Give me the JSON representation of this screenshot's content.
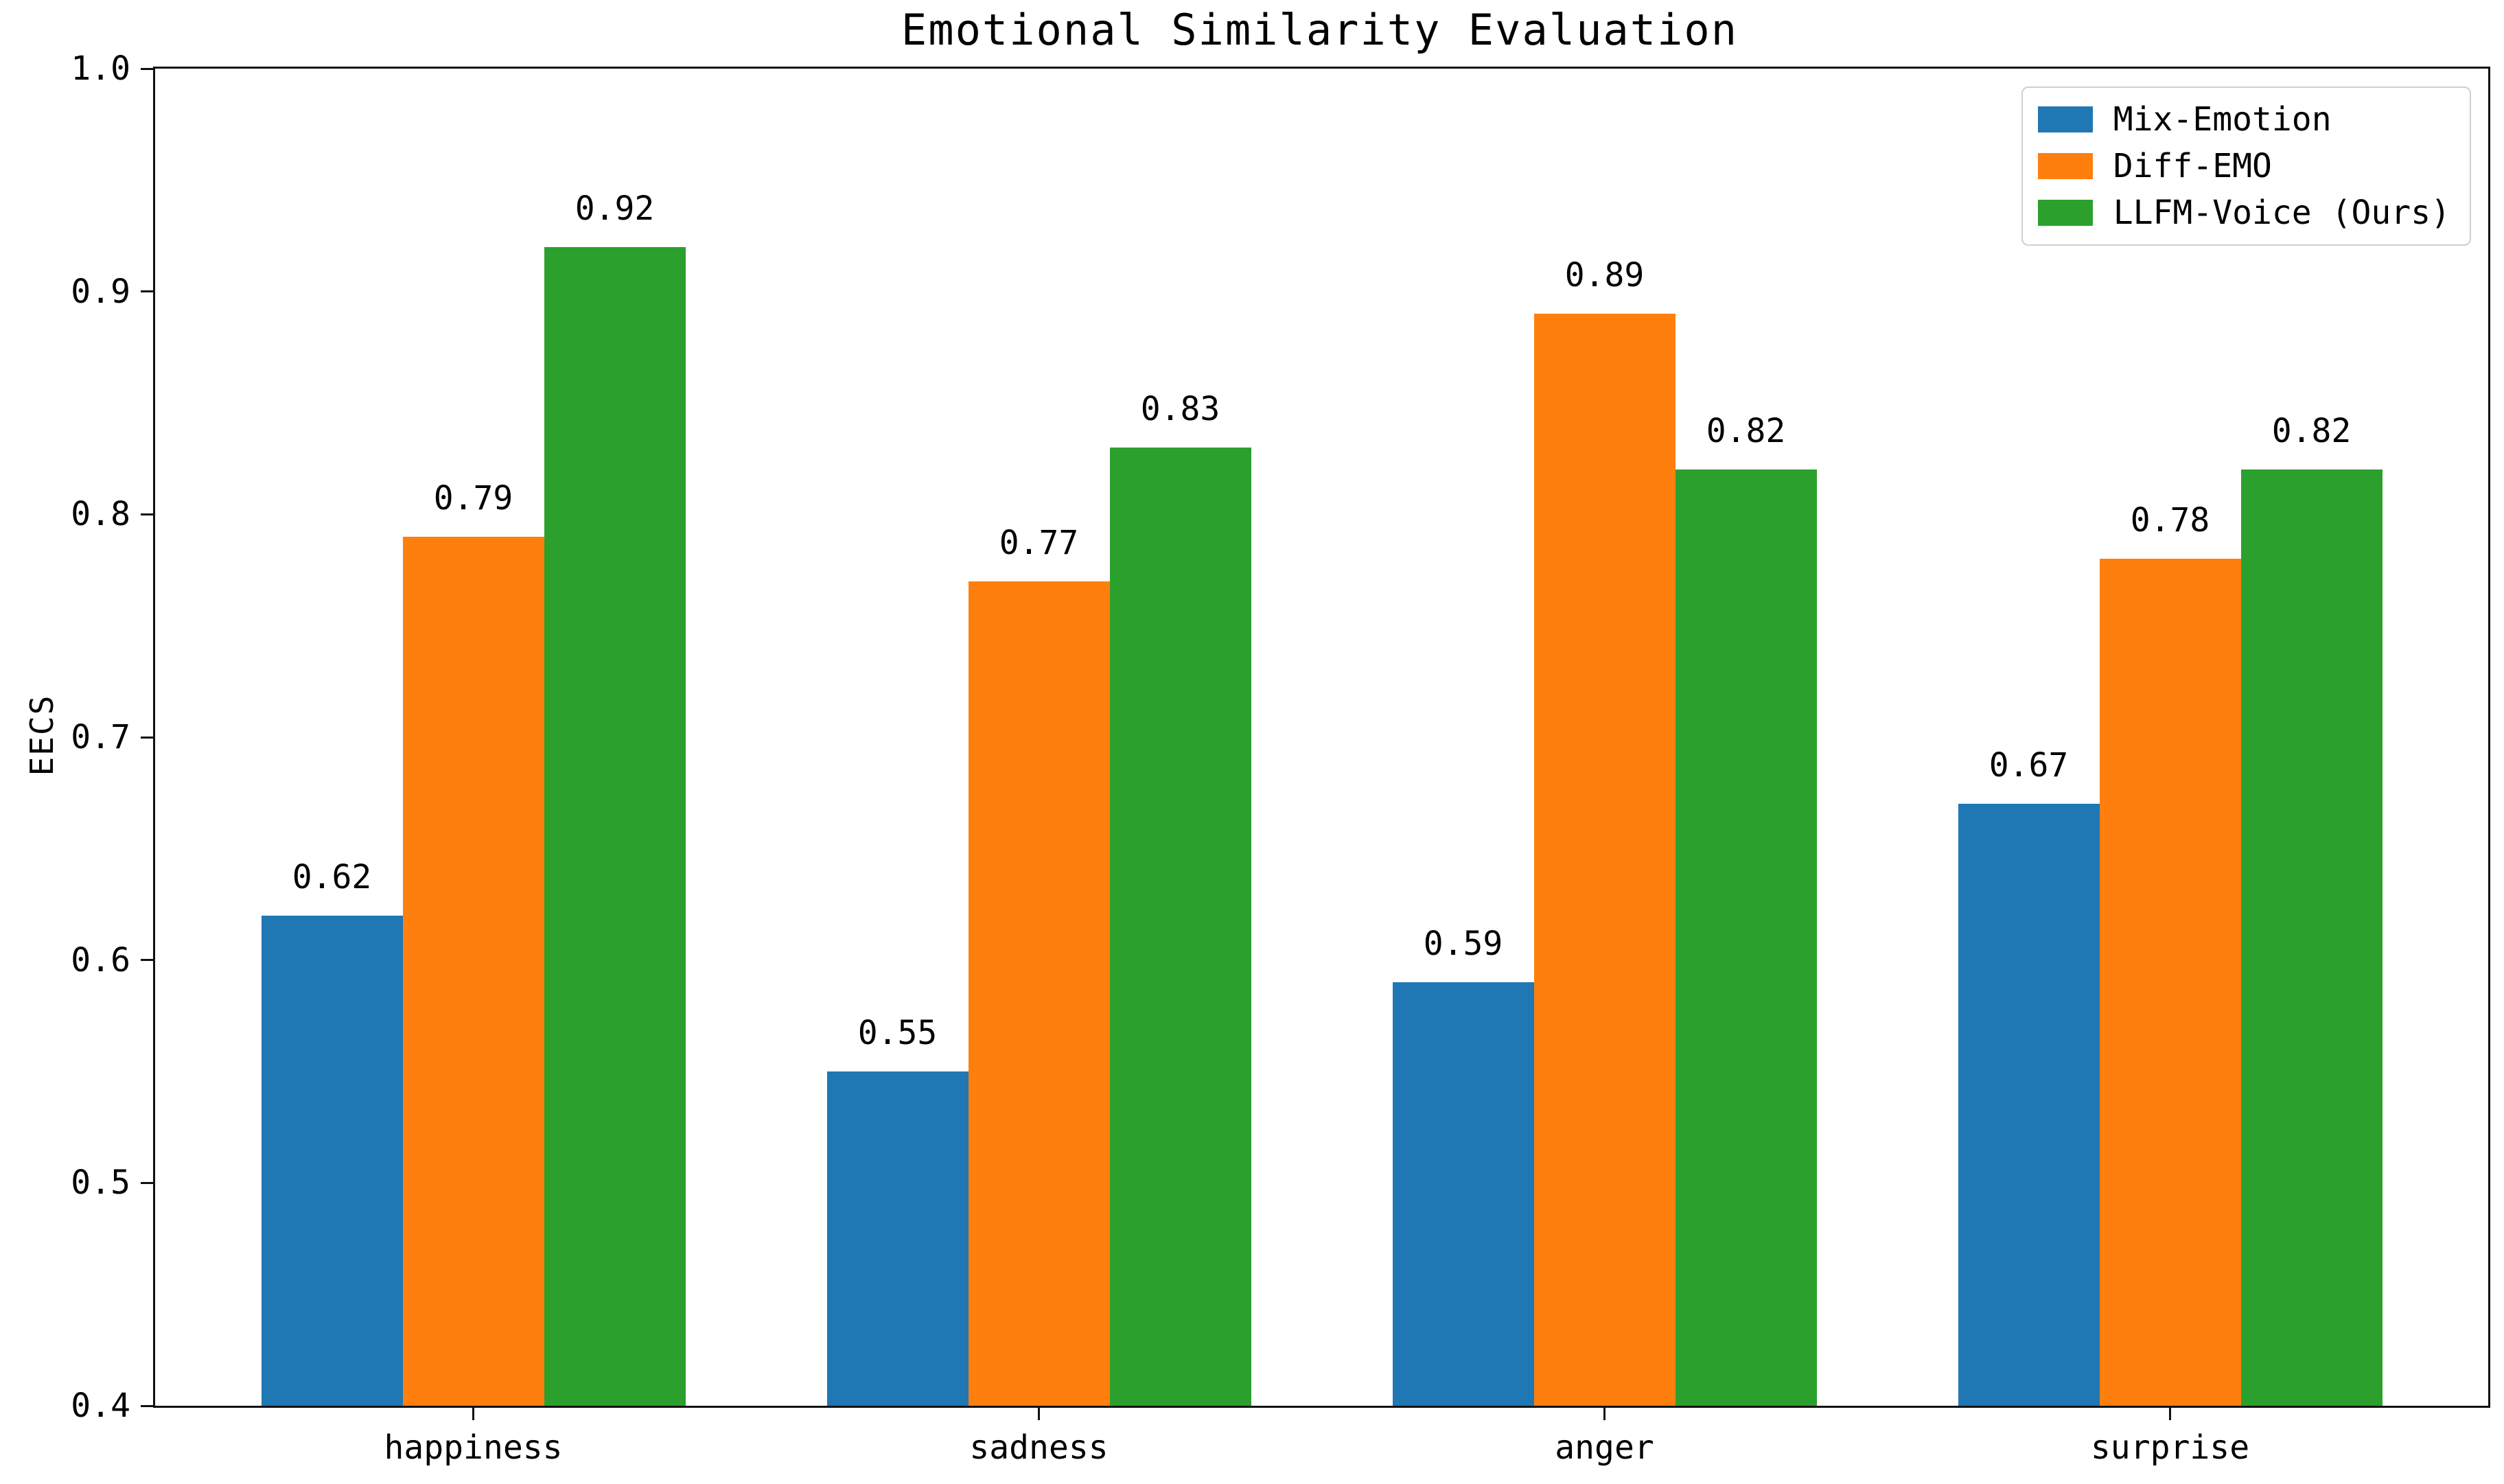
{
  "chart_data": {
    "type": "bar",
    "title": "Emotional Similarity Evaluation",
    "xlabel": "",
    "ylabel": "EECS",
    "categories": [
      "happiness",
      "sadness",
      "anger",
      "surprise"
    ],
    "series": [
      {
        "name": "Mix-Emotion",
        "color": "#1f77b4",
        "values": [
          0.62,
          0.55,
          0.59,
          0.67
        ]
      },
      {
        "name": "Diff-EMO",
        "color": "#ff7f0e",
        "values": [
          0.79,
          0.77,
          0.89,
          0.78
        ]
      },
      {
        "name": "LLFM-Voice (Ours)",
        "color": "#2ca02c",
        "values": [
          0.92,
          0.83,
          0.82,
          0.82
        ]
      }
    ],
    "ylim": [
      0.4,
      1.0
    ],
    "yticks": [
      0.4,
      0.5,
      0.6,
      0.7,
      0.8,
      0.9,
      1.0
    ],
    "ytick_labels": [
      "0.4",
      "0.5",
      "0.6",
      "0.7",
      "0.8",
      "0.9",
      "1.0"
    ],
    "bar_value_labels": [
      "0.62",
      "0.79",
      "0.92",
      "0.55",
      "0.77",
      "0.83",
      "0.59",
      "0.89",
      "0.82",
      "0.67",
      "0.78",
      "0.82"
    ],
    "grid": false,
    "legend_position": "upper right",
    "bar_width_data": 0.25,
    "xlim": [
      -0.5625,
      3.5625
    ],
    "axis_color": "#111111",
    "background_color": "#ffffff",
    "legend_border_color": "#cfcfcf"
  }
}
